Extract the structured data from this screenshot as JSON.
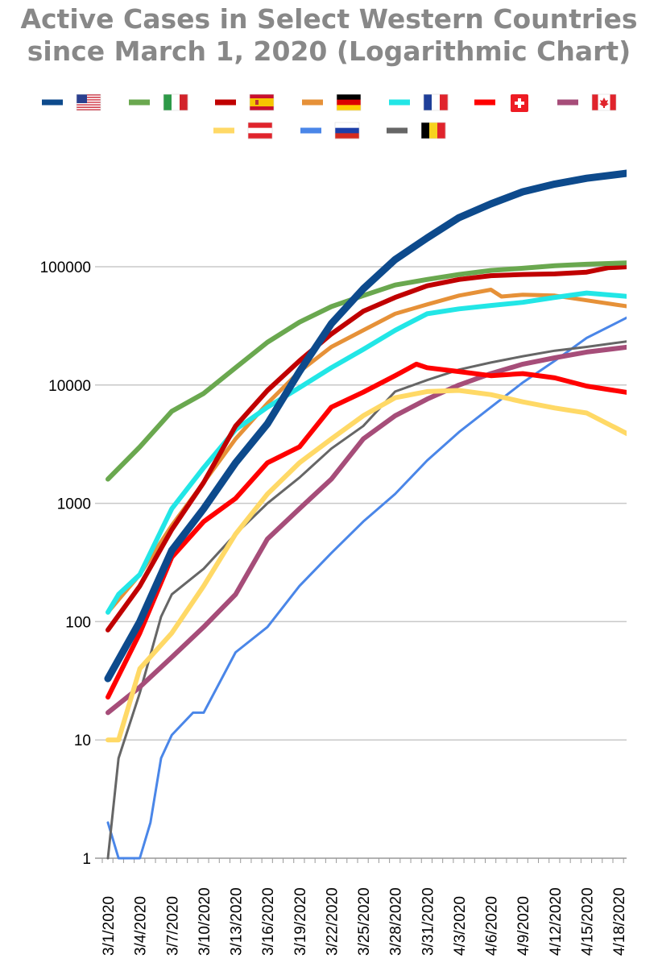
{
  "chart_data": {
    "type": "line",
    "title_lines": [
      "Active Cases in Select Western Countries",
      "since March 1, 2020 (Logarithmic Chart)"
    ],
    "y_scale": "log",
    "ylim": [
      1,
      1000000
    ],
    "y_ticks": [
      1,
      10,
      100,
      1000,
      10000,
      100000
    ],
    "y_tick_labels": [
      "1",
      "10",
      "100",
      "1000",
      "10000",
      "100000"
    ],
    "x_tick_labels": [
      "3/1/2020",
      "3/4/2020",
      "3/7/2020",
      "3/10/2020",
      "3/13/2020",
      "3/16/2020",
      "3/19/2020",
      "3/22/2020",
      "3/25/2020",
      "3/28/2020",
      "3/31/2020",
      "4/3/2020",
      "4/6/2020",
      "4/9/2020",
      "4/12/2020",
      "4/15/2020",
      "4/18/2020"
    ],
    "x_tick_dates": [
      "2020-03-01",
      "2020-03-04",
      "2020-03-07",
      "2020-03-10",
      "2020-03-13",
      "2020-03-16",
      "2020-03-19",
      "2020-03-22",
      "2020-03-25",
      "2020-03-28",
      "2020-03-31",
      "2020-04-03",
      "2020-04-06",
      "2020-04-09",
      "2020-04-12",
      "2020-04-15",
      "2020-04-18"
    ],
    "grid": true,
    "legend_position": "top",
    "series": [
      {
        "flag": "us",
        "color": "#0d4a8c",
        "width": 9,
        "x": [
          "2020-03-01",
          "2020-03-04",
          "2020-03-07",
          "2020-03-10",
          "2020-03-13",
          "2020-03-16",
          "2020-03-19",
          "2020-03-22",
          "2020-03-25",
          "2020-03-28",
          "2020-03-31",
          "2020-04-03",
          "2020-04-06",
          "2020-04-09",
          "2020-04-12",
          "2020-04-15",
          "2020-04-19"
        ],
        "y": [
          33,
          100,
          400,
          900,
          2200,
          4700,
          13000,
          33000,
          65000,
          115000,
          175000,
          260000,
          340000,
          430000,
          500000,
          560000,
          620000
        ]
      },
      {
        "flag": "it",
        "color": "#6aa84f",
        "width": 6,
        "x": [
          "2020-03-01",
          "2020-03-04",
          "2020-03-07",
          "2020-03-10",
          "2020-03-13",
          "2020-03-16",
          "2020-03-19",
          "2020-03-22",
          "2020-03-25",
          "2020-03-28",
          "2020-03-31",
          "2020-04-03",
          "2020-04-06",
          "2020-04-09",
          "2020-04-12",
          "2020-04-15",
          "2020-04-19"
        ],
        "y": [
          1600,
          3000,
          6000,
          8500,
          14000,
          23000,
          34000,
          46000,
          57000,
          70000,
          78000,
          86000,
          93000,
          97000,
          102000,
          105000,
          108000
        ]
      },
      {
        "flag": "es",
        "color": "#c00000",
        "width": 6,
        "x": [
          "2020-03-01",
          "2020-03-04",
          "2020-03-07",
          "2020-03-10",
          "2020-03-13",
          "2020-03-16",
          "2020-03-19",
          "2020-03-22",
          "2020-03-25",
          "2020-03-28",
          "2020-03-31",
          "2020-04-03",
          "2020-04-06",
          "2020-04-09",
          "2020-04-12",
          "2020-04-15",
          "2020-04-17",
          "2020-04-19"
        ],
        "y": [
          85,
          200,
          600,
          1500,
          4500,
          9000,
          16000,
          27000,
          42000,
          55000,
          69000,
          78000,
          84000,
          86000,
          87000,
          90000,
          98000,
          100000
        ]
      },
      {
        "flag": "de",
        "color": "#e69138",
        "width": 5,
        "x": [
          "2020-03-01",
          "2020-03-04",
          "2020-03-07",
          "2020-03-10",
          "2020-03-13",
          "2020-03-16",
          "2020-03-19",
          "2020-03-22",
          "2020-03-25",
          "2020-03-28",
          "2020-03-31",
          "2020-04-03",
          "2020-04-06",
          "2020-04-07",
          "2020-04-09",
          "2020-04-12",
          "2020-04-15",
          "2020-04-19"
        ],
        "y": [
          120,
          250,
          650,
          1500,
          3500,
          7000,
          13000,
          21000,
          29000,
          40000,
          48000,
          57000,
          64000,
          56000,
          58000,
          57000,
          52000,
          46000
        ]
      },
      {
        "flag": "fr",
        "color": "#22e6e6",
        "width": 6,
        "x": [
          "2020-03-01",
          "2020-03-02",
          "2020-03-04",
          "2020-03-07",
          "2020-03-10",
          "2020-03-13",
          "2020-03-16",
          "2020-03-19",
          "2020-03-22",
          "2020-03-25",
          "2020-03-28",
          "2020-03-31",
          "2020-04-03",
          "2020-04-06",
          "2020-04-09",
          "2020-04-12",
          "2020-04-15",
          "2020-04-19"
        ],
        "y": [
          120,
          170,
          250,
          900,
          2000,
          4200,
          6500,
          9500,
          14000,
          20000,
          29000,
          40000,
          44000,
          47000,
          50000,
          55000,
          60000,
          56000
        ]
      },
      {
        "flag": "ch",
        "color": "#ff0000",
        "width": 6,
        "x": [
          "2020-03-01",
          "2020-03-04",
          "2020-03-07",
          "2020-03-10",
          "2020-03-13",
          "2020-03-16",
          "2020-03-19",
          "2020-03-22",
          "2020-03-25",
          "2020-03-28",
          "2020-03-30",
          "2020-03-31",
          "2020-04-03",
          "2020-04-06",
          "2020-04-09",
          "2020-04-12",
          "2020-04-15",
          "2020-04-19"
        ],
        "y": [
          23,
          80,
          350,
          700,
          1100,
          2200,
          3000,
          6500,
          8700,
          12000,
          15000,
          14000,
          13000,
          12000,
          12500,
          11500,
          9800,
          8600
        ]
      },
      {
        "flag": "ca",
        "color": "#a64d79",
        "width": 6,
        "x": [
          "2020-03-01",
          "2020-03-04",
          "2020-03-07",
          "2020-03-10",
          "2020-03-13",
          "2020-03-16",
          "2020-03-19",
          "2020-03-22",
          "2020-03-25",
          "2020-03-28",
          "2020-03-31",
          "2020-04-03",
          "2020-04-06",
          "2020-04-09",
          "2020-04-12",
          "2020-04-15",
          "2020-04-19"
        ],
        "y": [
          17,
          28,
          50,
          90,
          170,
          500,
          900,
          1600,
          3500,
          5500,
          7600,
          10000,
          12500,
          15000,
          17000,
          19000,
          21000
        ]
      },
      {
        "flag": "at",
        "color": "#ffd966",
        "width": 6,
        "x": [
          "2020-03-01",
          "2020-03-02",
          "2020-03-04",
          "2020-03-07",
          "2020-03-10",
          "2020-03-13",
          "2020-03-16",
          "2020-03-19",
          "2020-03-22",
          "2020-03-25",
          "2020-03-28",
          "2020-03-31",
          "2020-04-03",
          "2020-04-06",
          "2020-04-09",
          "2020-04-12",
          "2020-04-15",
          "2020-04-19"
        ],
        "y": [
          10,
          10,
          40,
          80,
          200,
          550,
          1200,
          2200,
          3500,
          5500,
          7800,
          8800,
          9000,
          8300,
          7200,
          6400,
          5800,
          3800
        ]
      },
      {
        "flag": "ru",
        "color": "#4a86e8",
        "width": 3,
        "x": [
          "2020-03-01",
          "2020-03-02",
          "2020-03-04",
          "2020-03-05",
          "2020-03-06",
          "2020-03-07",
          "2020-03-09",
          "2020-03-10",
          "2020-03-13",
          "2020-03-16",
          "2020-03-19",
          "2020-03-22",
          "2020-03-25",
          "2020-03-28",
          "2020-03-31",
          "2020-04-03",
          "2020-04-06",
          "2020-04-09",
          "2020-04-12",
          "2020-04-15",
          "2020-04-19"
        ],
        "y": [
          2,
          1,
          1,
          2,
          7,
          11,
          17,
          17,
          55,
          90,
          200,
          380,
          700,
          1200,
          2300,
          4000,
          6500,
          10500,
          16000,
          25000,
          38000
        ]
      },
      {
        "flag": "be",
        "color": "#666666",
        "width": 3,
        "x": [
          "2020-03-01",
          "2020-03-02",
          "2020-03-04",
          "2020-03-06",
          "2020-03-07",
          "2020-03-10",
          "2020-03-13",
          "2020-03-16",
          "2020-03-19",
          "2020-03-22",
          "2020-03-25",
          "2020-03-28",
          "2020-03-31",
          "2020-04-03",
          "2020-04-06",
          "2020-04-09",
          "2020-04-12",
          "2020-04-15",
          "2020-04-19"
        ],
        "y": [
          1,
          7,
          25,
          110,
          170,
          280,
          550,
          1000,
          1650,
          2900,
          4500,
          8800,
          11000,
          13500,
          15500,
          17500,
          19500,
          21000,
          23500
        ]
      }
    ],
    "legend_order": [
      "us",
      "it",
      "es",
      "de",
      "fr",
      "ch",
      "ca",
      "at",
      "ru",
      "be"
    ]
  }
}
